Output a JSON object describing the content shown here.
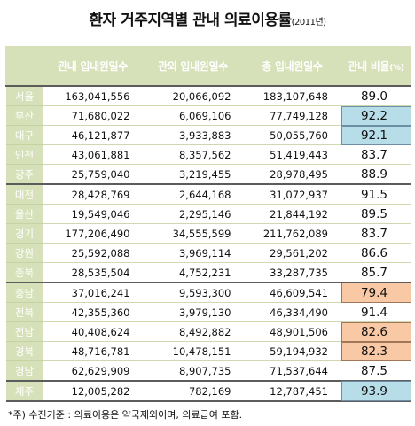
{
  "title": {
    "main": "환자 거주지역별 관내 의료이용률",
    "year": "(2011년)"
  },
  "table": {
    "headers": [
      "관내 입내원일수",
      "관외 입내원일수",
      "총 입내원일수",
      "관내 비율"
    ],
    "ratio_unit": "(%)",
    "rows": [
      {
        "region": "서울",
        "in": "163,041,556",
        "out": "20,066,092",
        "total": "183,107,648",
        "ratio": "89.0",
        "hl": ""
      },
      {
        "region": "부산",
        "in": "71,680,022",
        "out": "6,069,106",
        "total": "77,749,128",
        "ratio": "92.2",
        "hl": "blue"
      },
      {
        "region": "대구",
        "in": "46,121,877",
        "out": "3,933,883",
        "total": "50,055,760",
        "ratio": "92.1",
        "hl": "blue"
      },
      {
        "region": "인천",
        "in": "43,061,881",
        "out": "8,357,562",
        "total": "51,419,443",
        "ratio": "83.7",
        "hl": ""
      },
      {
        "region": "광주",
        "in": "25,759,040",
        "out": "3,219,455",
        "total": "28,978,495",
        "ratio": "88.9",
        "hl": ""
      },
      {
        "region": "대전",
        "in": "28,428,769",
        "out": "2,644,168",
        "total": "31,072,937",
        "ratio": "91.5",
        "hl": ""
      },
      {
        "region": "울산",
        "in": "19,549,046",
        "out": "2,295,146",
        "total": "21,844,192",
        "ratio": "89.5",
        "hl": ""
      },
      {
        "region": "경기",
        "in": "177,206,490",
        "out": "34,555,599",
        "total": "211,762,089",
        "ratio": "83.7",
        "hl": ""
      },
      {
        "region": "강원",
        "in": "25,592,088",
        "out": "3,969,114",
        "total": "29,561,202",
        "ratio": "86.6",
        "hl": ""
      },
      {
        "region": "충북",
        "in": "28,535,504",
        "out": "4,752,231",
        "total": "33,287,735",
        "ratio": "85.7",
        "hl": ""
      },
      {
        "region": "충남",
        "in": "37,016,241",
        "out": "9,593,300",
        "total": "46,609,541",
        "ratio": "79.4",
        "hl": "orange"
      },
      {
        "region": "전북",
        "in": "42,355,360",
        "out": "3,979,130",
        "total": "46,334,490",
        "ratio": "91.4",
        "hl": ""
      },
      {
        "region": "전남",
        "in": "40,408,624",
        "out": "8,492,882",
        "total": "48,901,506",
        "ratio": "82.6",
        "hl": "orange"
      },
      {
        "region": "경북",
        "in": "48,716,781",
        "out": "10,478,151",
        "total": "59,194,932",
        "ratio": "82.3",
        "hl": "orange"
      },
      {
        "region": "경남",
        "in": "62,629,909",
        "out": "8,907,735",
        "total": "71,537,644",
        "ratio": "87.5",
        "hl": ""
      },
      {
        "region": "제주",
        "in": "12,005,282",
        "out": "782,169",
        "total": "12,787,451",
        "ratio": "93.9",
        "hl": "blue"
      }
    ]
  },
  "note": "*주) 수진기준 : 의료이용은 약국제외이며, 의료급여 포함.",
  "colors": {
    "header_green": "#d6e1b9",
    "highlight_blue": "#b6dde8",
    "highlight_orange": "#f9c8a4"
  }
}
